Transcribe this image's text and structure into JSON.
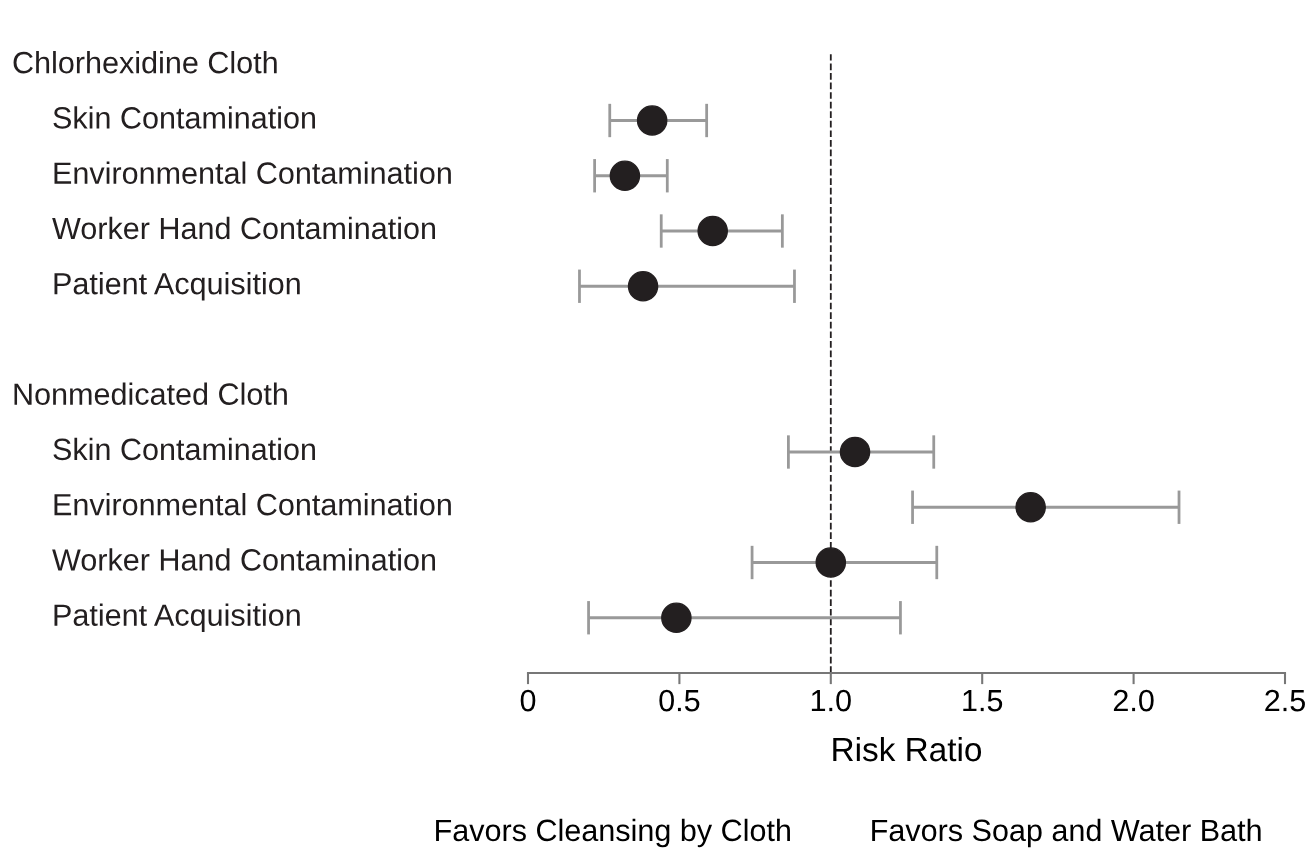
{
  "chart_data": {
    "type": "scatter",
    "orientation": "horizontal",
    "xlabel": "Risk Ratio",
    "categories": [
      null,
      "Skin Contamination",
      "Environmental Contamination",
      "Worker Hand Contamination",
      "Patient Acquisition",
      null,
      null,
      "Skin Contamination",
      "Environmental Contamination",
      "Worker Hand Contamination",
      "Patient Acquisition"
    ],
    "series": [
      {
        "color": "#231f20",
        "values": [
          null,
          0.41,
          0.32,
          0.61,
          0.38,
          null,
          null,
          1.08,
          1.66,
          1.0,
          0.49
        ],
        "errors": [
          null,
          [
            0.27,
            0.59
          ],
          [
            0.22,
            0.46
          ],
          [
            0.44,
            0.84
          ],
          [
            0.17,
            0.88
          ],
          null,
          null,
          [
            0.86,
            1.34
          ],
          [
            1.27,
            2.15
          ],
          [
            0.74,
            1.35
          ],
          [
            0.2,
            1.23
          ]
        ]
      }
    ],
    "marker": "circle",
    "xlim": [
      0,
      2.5
    ],
    "xticks": [
      0,
      0.5,
      {
        "value": 1.0,
        "label": "1.0"
      },
      1.5,
      {
        "value": 2.0,
        "label": "2.0"
      },
      2.5
    ],
    "tick_labels": "x",
    "ref_lines": [
      {
        "axis": "x",
        "value": 1.0,
        "line_style": "dashed",
        "color": "#231f20"
      }
    ],
    "annotations": [
      "Chlorhexidine Cloth",
      "Nonmedicated Cloth",
      "Favors Cleansing by Cloth",
      "Favors Soap and Water Bath"
    ]
  }
}
